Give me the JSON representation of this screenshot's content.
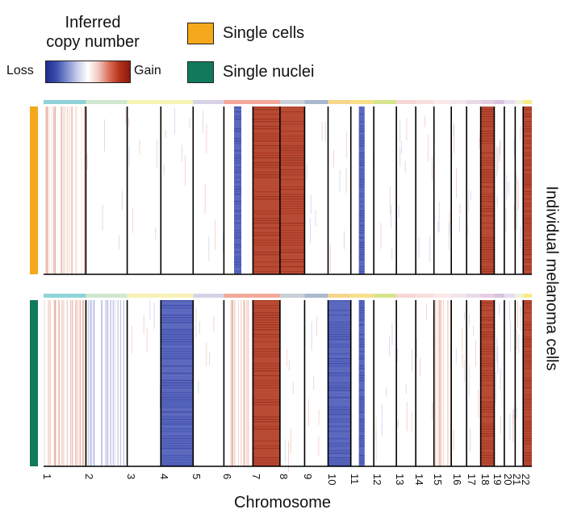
{
  "legend": {
    "title_line1": "Inferred",
    "title_line2": "copy number",
    "loss_label": "Loss",
    "gain_label": "Gain",
    "items": [
      {
        "label": "Single cells",
        "color": "#f5a81c"
      },
      {
        "label": "Single nuclei",
        "color": "#117a5c"
      }
    ]
  },
  "colorbar_colors": [
    "#1f2d8a",
    "#3a4fae",
    "#7f8fcf",
    "#c7cdea",
    "#ffffff",
    "#f2c8bf",
    "#d9705a",
    "#b3321c",
    "#8a1a0c"
  ],
  "chart_data": {
    "type": "heatmap",
    "xlabel": "Chromosome",
    "ylabel": "Individual melanoma cells",
    "chromosomes": [
      "1",
      "2",
      "3",
      "4",
      "5",
      "6",
      "7",
      "8",
      "9",
      "10",
      "11",
      "12",
      "13",
      "14",
      "15",
      "16",
      "17",
      "18",
      "19",
      "20",
      "21",
      "22"
    ],
    "panels": [
      {
        "name": "Single cells",
        "color": "#f5a81c",
        "states": {
          "1": "slight-gain",
          "6": "loss",
          "7": "gain",
          "8": "gain",
          "11": "loss",
          "18": "gain",
          "22": "gain"
        }
      },
      {
        "name": "Single nuclei",
        "color": "#117a5c",
        "states": {
          "1": "slight-gain",
          "2": "slight-loss",
          "4": "loss",
          "6": "slight-gain",
          "7": "gain",
          "10": "loss",
          "11": "loss",
          "15": "slight-gain",
          "18": "gain",
          "22": "gain"
        }
      }
    ],
    "chromosome_band_colors": [
      "#8fd3d8",
      "#cfe8cf",
      "#f7f3b5",
      "#f7f3b5",
      "#d7d2e8",
      "#f2a89a",
      "#f2a89a",
      "#c9cfd6",
      "#a9b9cf",
      "#f7d58a",
      "#f7e08a",
      "#d6e48c",
      "#f7d6d6",
      "#f9dede",
      "#fbe8e8",
      "#f2e6ea",
      "#e8dbe8",
      "#e6cde3",
      "#d9c2e0",
      "#e6ddee",
      "#eef2d8",
      "#f7ec84"
    ]
  }
}
